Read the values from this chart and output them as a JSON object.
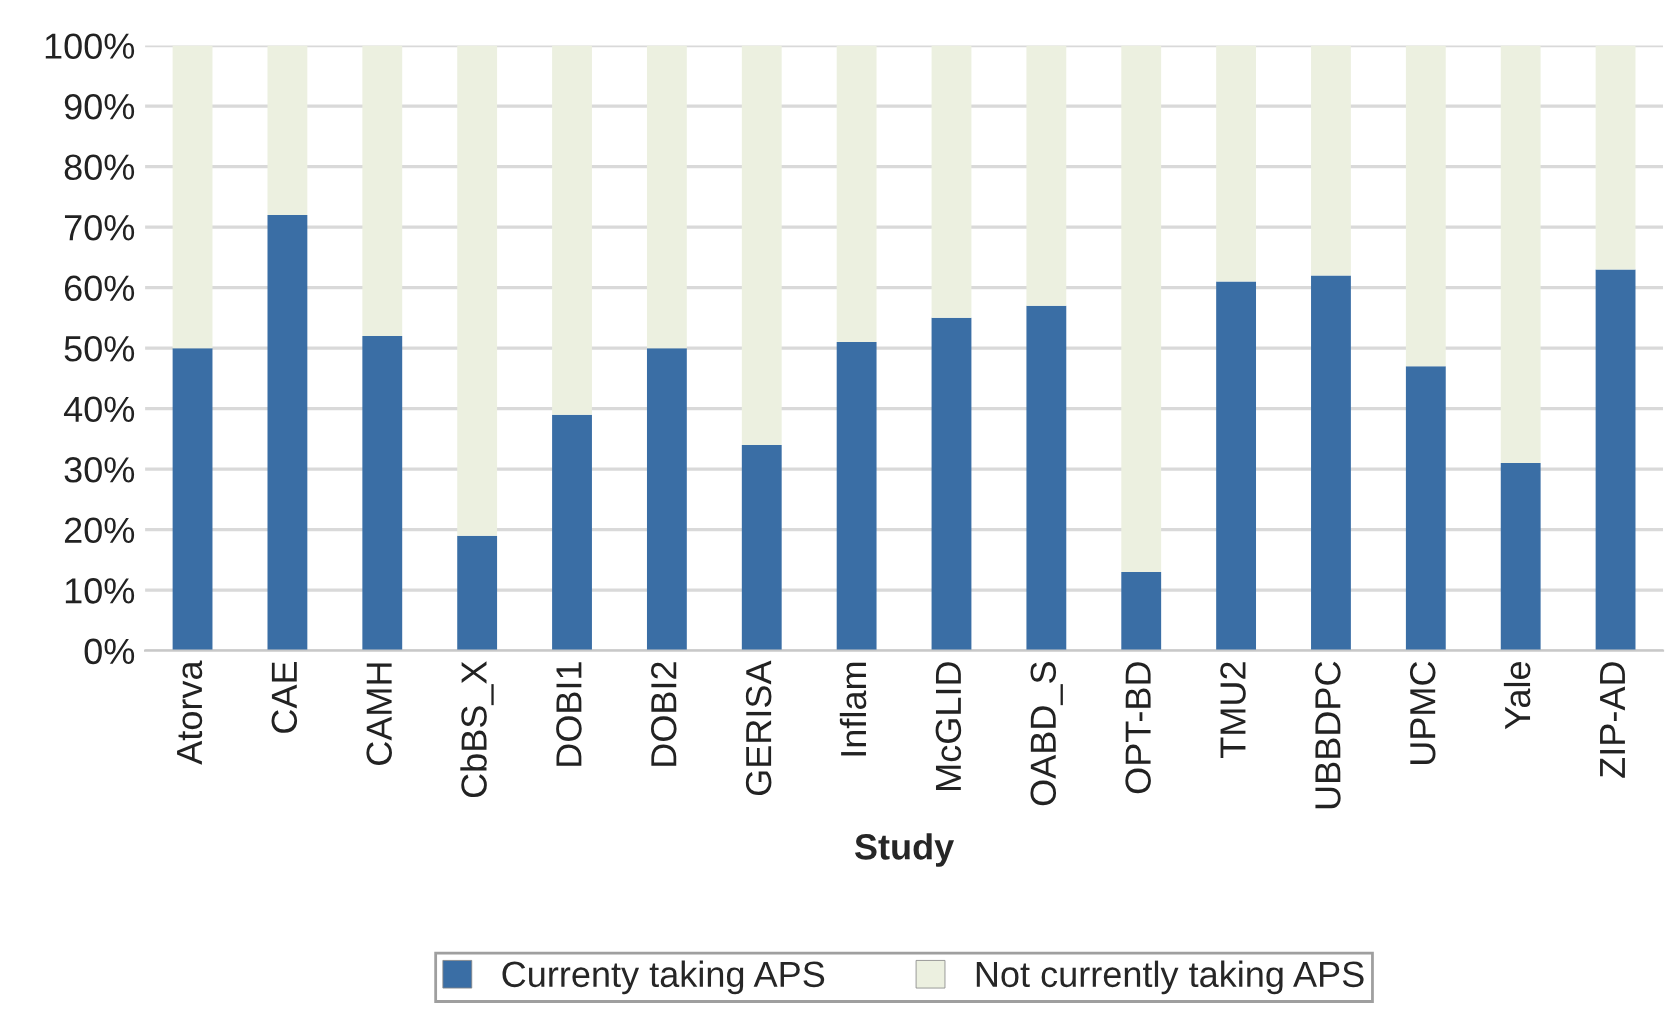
{
  "chart_data": {
    "type": "bar",
    "stacked": true,
    "xlabel": "Study",
    "categories": [
      "Atorva",
      "CAE",
      "CAMH",
      "CbBS_X",
      "DOBI1",
      "DOBI2",
      "GERISA",
      "Inflam",
      "McGLID",
      "OABD_S",
      "OPT-BD",
      "TMU2",
      "UBBDPC",
      "UPMC",
      "Yale",
      "ZIP-AD"
    ],
    "series": [
      {
        "name": "Currenty taking APS",
        "color": "#3a6ea5",
        "values": [
          50,
          72,
          52,
          19,
          39,
          50,
          34,
          51,
          55,
          57,
          13,
          61,
          62,
          47,
          31,
          63
        ]
      },
      {
        "name": "Not currently taking APS",
        "color": "#ecf0e0",
        "values": [
          50,
          28,
          48,
          81,
          61,
          50,
          66,
          49,
          45,
          43,
          87,
          39,
          38,
          53,
          69,
          37
        ]
      }
    ],
    "ylim": [
      0,
      100
    ],
    "yticks": [
      {
        "value": 0,
        "label": "0%"
      },
      {
        "value": 10,
        "label": "10%"
      },
      {
        "value": 20,
        "label": "20%"
      },
      {
        "value": 30,
        "label": "30%"
      },
      {
        "value": 40,
        "label": "40%"
      },
      {
        "value": 50,
        "label": "50%"
      },
      {
        "value": 60,
        "label": "60%"
      },
      {
        "value": 70,
        "label": "70%"
      },
      {
        "value": 80,
        "label": "80%"
      },
      {
        "value": 90,
        "label": "90%"
      },
      {
        "value": 100,
        "label": "100%"
      }
    ],
    "grid": "y",
    "legend": "bottom"
  }
}
